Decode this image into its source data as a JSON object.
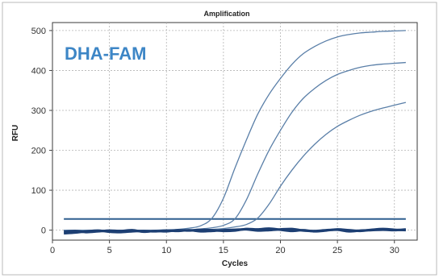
{
  "chart_data": {
    "type": "line",
    "title": "Amplification",
    "xlabel": "Cycles",
    "ylabel": "RFU",
    "annotation": "DHA-FAM",
    "xlim": [
      0,
      32
    ],
    "ylim": [
      -25,
      520
    ],
    "xticks": [
      0,
      5,
      10,
      15,
      20,
      25,
      30
    ],
    "yticks": [
      0,
      100,
      200,
      300,
      400,
      500
    ],
    "grid": true,
    "threshold": 28,
    "colors": {
      "curve": "#5a7fa8",
      "threshold": "#2f5f8f",
      "baseline": "#1d3f73",
      "annotation": "#3d86c6"
    },
    "series": [
      {
        "x": [
          1,
          2,
          3,
          4,
          5,
          6,
          7,
          8,
          9,
          10,
          11,
          12,
          13,
          14,
          15,
          16,
          17,
          18,
          19,
          20,
          21,
          22,
          23,
          24,
          25,
          26,
          27,
          28,
          29,
          30,
          31
        ],
        "values": [
          0,
          0,
          0,
          0,
          0,
          0,
          0,
          0,
          0,
          1,
          2,
          5,
          11,
          30,
          80,
          155,
          225,
          290,
          340,
          380,
          415,
          442,
          460,
          474,
          484,
          490,
          494,
          496,
          498,
          499,
          500
        ]
      },
      {
        "x": [
          1,
          2,
          3,
          4,
          5,
          6,
          7,
          8,
          9,
          10,
          11,
          12,
          13,
          14,
          15,
          16,
          17,
          18,
          19,
          20,
          21,
          22,
          23,
          24,
          25,
          26,
          27,
          28,
          29,
          30,
          31
        ],
        "values": [
          0,
          0,
          0,
          0,
          0,
          0,
          0,
          0,
          0,
          0,
          0,
          1,
          3,
          6,
          12,
          28,
          75,
          140,
          200,
          250,
          295,
          330,
          355,
          375,
          390,
          400,
          408,
          413,
          416,
          418,
          420
        ]
      },
      {
        "x": [
          1,
          2,
          3,
          4,
          5,
          6,
          7,
          8,
          9,
          10,
          11,
          12,
          13,
          14,
          15,
          16,
          17,
          18,
          19,
          20,
          21,
          22,
          23,
          24,
          25,
          26,
          27,
          28,
          29,
          30,
          31
        ],
        "values": [
          0,
          0,
          0,
          0,
          0,
          0,
          0,
          0,
          0,
          0,
          0,
          0,
          1,
          2,
          4,
          8,
          14,
          30,
          65,
          110,
          150,
          185,
          215,
          240,
          260,
          275,
          288,
          298,
          306,
          313,
          320
        ]
      },
      {
        "x": [
          1,
          2,
          3,
          4,
          5,
          6,
          7,
          8,
          9,
          10,
          11,
          12,
          13,
          14,
          15,
          16,
          17,
          18,
          19,
          20,
          21,
          22,
          23,
          24,
          25,
          26,
          27,
          28,
          29,
          30,
          31
        ],
        "values": [
          -8,
          -6,
          -3,
          -1,
          -4,
          -5,
          -3,
          -2,
          -3,
          -1,
          -2,
          0,
          -3,
          -2,
          0,
          1,
          2,
          -1,
          0,
          2,
          3,
          -1,
          -2,
          0,
          1,
          -3,
          -1,
          0,
          1,
          0,
          2
        ]
      },
      {
        "x": [
          1,
          2,
          3,
          4,
          5,
          6,
          7,
          8,
          9,
          10,
          11,
          12,
          13,
          14,
          15,
          16,
          17,
          18,
          19,
          20,
          21,
          22,
          23,
          24,
          25,
          26,
          27,
          28,
          29,
          30,
          31
        ],
        "values": [
          -4,
          -2,
          -5,
          -3,
          -1,
          -2,
          0,
          -4,
          -2,
          -3,
          0,
          -1,
          1,
          0,
          -2,
          -1,
          3,
          2,
          4,
          1,
          -2,
          0,
          -3,
          -1,
          2,
          0,
          -2,
          1,
          3,
          1,
          0
        ]
      }
    ]
  }
}
